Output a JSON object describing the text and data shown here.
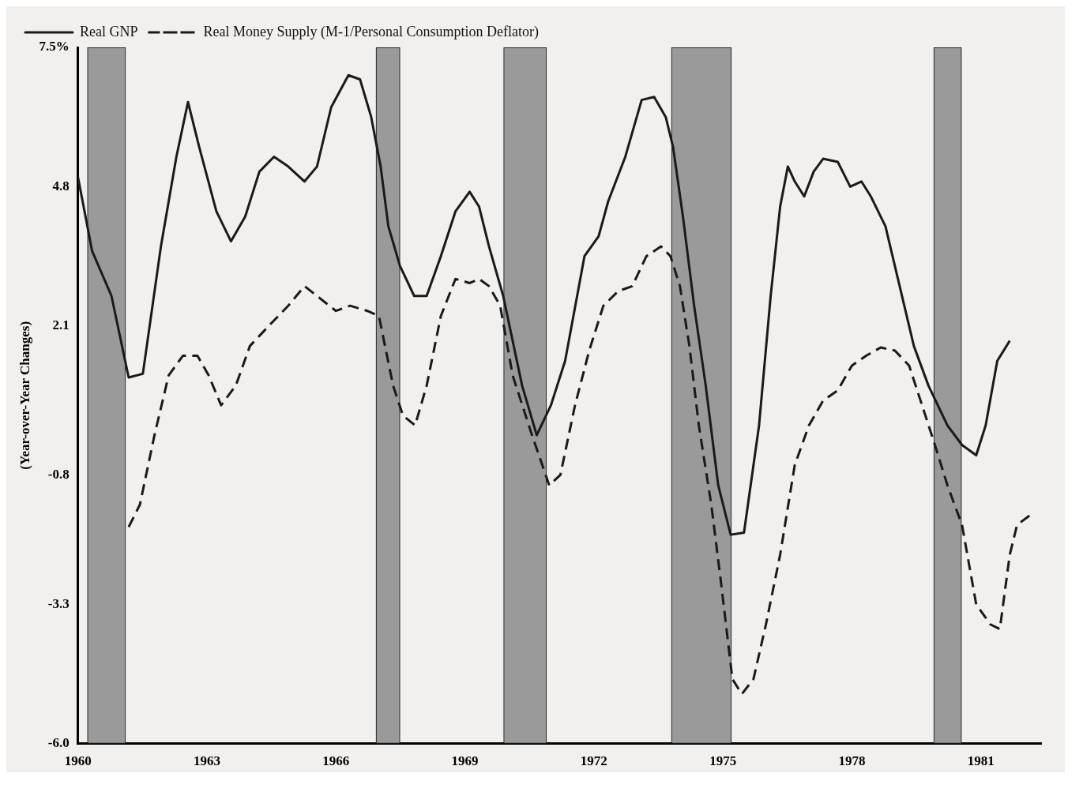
{
  "chart_data": {
    "type": "line",
    "ylabel": "(Year-over-Year Changes)",
    "xlim": [
      1960,
      1982.4
    ],
    "ylim": [
      -6.0,
      7.5
    ],
    "xticks": [
      1960,
      1963,
      1966,
      1969,
      1972,
      1975,
      1978,
      1981
    ],
    "yticks": [
      {
        "value": -6.0,
        "label": "-6.0"
      },
      {
        "value": -3.3,
        "label": "-3.3"
      },
      {
        "value": -0.8,
        "label": "-0.8"
      },
      {
        "value": 2.1,
        "label": "2.1"
      },
      {
        "value": 4.8,
        "label": "4.8"
      },
      {
        "value": 7.5,
        "label": "7.5%"
      }
    ],
    "grid": false,
    "legend": "top left",
    "marker": "none",
    "bands": [
      {
        "axis": "x",
        "from": 1960.22,
        "to": 1961.11,
        "color": "#9a9a9a"
      },
      {
        "axis": "x",
        "from": 1966.93,
        "to": 1967.49,
        "color": "#9a9a9a"
      },
      {
        "axis": "x",
        "from": 1969.9,
        "to": 1970.9,
        "color": "#9a9a9a"
      },
      {
        "axis": "x",
        "from": 1973.8,
        "to": 1975.2,
        "color": "#9a9a9a"
      },
      {
        "axis": "x",
        "from": 1979.9,
        "to": 1980.55,
        "color": "#9a9a9a"
      }
    ],
    "series": [
      {
        "name": "Real GNP",
        "color": "#1a1a1a",
        "line_style": "solid",
        "x": [
          1960.0,
          1960.33,
          1960.78,
          1961.18,
          1961.51,
          1961.93,
          1962.29,
          1962.56,
          1962.82,
          1963.22,
          1963.56,
          1963.89,
          1964.22,
          1964.56,
          1964.89,
          1965.27,
          1965.56,
          1965.89,
          1966.29,
          1966.56,
          1966.82,
          1967.04,
          1967.22,
          1967.49,
          1967.82,
          1968.11,
          1968.44,
          1968.78,
          1969.11,
          1969.33,
          1969.56,
          1969.89,
          1970.33,
          1970.67,
          1971.0,
          1971.33,
          1971.78,
          1972.11,
          1972.33,
          1972.73,
          1973.11,
          1973.4,
          1973.67,
          1973.84,
          1974.07,
          1974.33,
          1974.6,
          1974.89,
          1975.18,
          1975.49,
          1975.84,
          1976.11,
          1976.33,
          1976.51,
          1976.67,
          1976.89,
          1977.11,
          1977.33,
          1977.67,
          1977.96,
          1978.22,
          1978.44,
          1978.78,
          1979.11,
          1979.44,
          1979.78,
          1980.22,
          1980.56,
          1980.89,
          1981.11,
          1981.38,
          1981.67
        ],
        "values": [
          4.99,
          3.55,
          2.68,
          1.1,
          1.17,
          3.64,
          5.38,
          6.44,
          5.57,
          4.32,
          3.74,
          4.22,
          5.09,
          5.38,
          5.19,
          4.9,
          5.19,
          6.34,
          6.96,
          6.88,
          6.15,
          5.19,
          4.03,
          3.26,
          2.68,
          2.68,
          3.45,
          4.32,
          4.7,
          4.41,
          3.64,
          2.68,
          0.94,
          -0.02,
          0.56,
          1.42,
          3.45,
          3.84,
          4.51,
          5.38,
          6.48,
          6.54,
          6.15,
          5.57,
          4.22,
          2.49,
          0.94,
          -0.99,
          -1.95,
          -1.91,
          0.17,
          2.68,
          4.41,
          5.19,
          4.9,
          4.61,
          5.09,
          5.34,
          5.28,
          4.8,
          4.9,
          4.61,
          4.03,
          2.87,
          1.71,
          0.94,
          0.17,
          -0.21,
          -0.41,
          0.17,
          1.42,
          1.81
        ]
      },
      {
        "name": "Real Money Supply (M-1/Personal Consumption Deflator)",
        "color": "#1a1a1a",
        "line_style": "dashed",
        "x": [
          1961.18,
          1961.44,
          1961.78,
          1962.11,
          1962.44,
          1962.78,
          1963.04,
          1963.33,
          1963.67,
          1964.0,
          1964.44,
          1964.89,
          1965.27,
          1965.62,
          1966.0,
          1966.33,
          1966.73,
          1967.0,
          1967.33,
          1967.56,
          1967.84,
          1968.11,
          1968.44,
          1968.78,
          1969.11,
          1969.33,
          1969.56,
          1969.82,
          1970.11,
          1970.56,
          1970.96,
          1971.22,
          1971.56,
          1971.89,
          1972.22,
          1972.56,
          1972.89,
          1973.22,
          1973.56,
          1973.78,
          1974.0,
          1974.22,
          1974.44,
          1974.73,
          1974.96,
          1975.22,
          1975.44,
          1975.71,
          1976.0,
          1976.33,
          1976.67,
          1977.0,
          1977.33,
          1977.67,
          1978.0,
          1978.33,
          1978.67,
          1979.0,
          1979.33,
          1979.67,
          1979.93,
          1980.22,
          1980.56,
          1980.89,
          1981.22,
          1981.44,
          1981.67,
          1981.84,
          1982.16
        ],
        "values": [
          -1.8,
          -1.37,
          -0.02,
          1.14,
          1.52,
          1.52,
          1.14,
          0.56,
          0.94,
          1.71,
          2.1,
          2.49,
          2.87,
          2.64,
          2.39,
          2.49,
          2.39,
          2.29,
          0.94,
          0.36,
          0.17,
          0.94,
          2.29,
          3.01,
          2.93,
          3.01,
          2.87,
          2.49,
          1.14,
          -0.02,
          -0.99,
          -0.79,
          0.56,
          1.62,
          2.49,
          2.77,
          2.87,
          3.45,
          3.64,
          3.45,
          2.87,
          1.71,
          0.17,
          -1.37,
          -2.91,
          -4.75,
          -5.04,
          -4.75,
          -3.69,
          -2.34,
          -0.6,
          0.17,
          0.65,
          0.85,
          1.33,
          1.52,
          1.68,
          1.62,
          1.33,
          0.46,
          -0.21,
          -0.99,
          -1.76,
          -3.3,
          -3.69,
          -3.78,
          -2.34,
          -1.76,
          -1.56
        ]
      }
    ]
  }
}
